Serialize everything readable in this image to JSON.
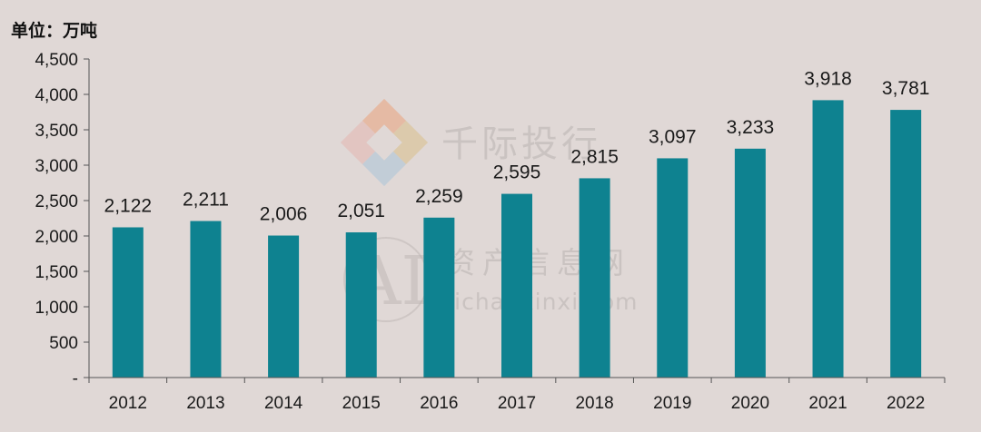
{
  "chart_data": {
    "type": "bar",
    "unit_label": "单位：万吨",
    "categories": [
      "2012",
      "2013",
      "2014",
      "2015",
      "2016",
      "2017",
      "2018",
      "2019",
      "2020",
      "2021",
      "2022"
    ],
    "values": [
      2122,
      2211,
      2006,
      2051,
      2259,
      2595,
      2815,
      3097,
      3233,
      3918,
      3781
    ],
    "value_labels": [
      "2,122",
      "2,211",
      "2,006",
      "2,051",
      "2,259",
      "2,595",
      "2,815",
      "3,097",
      "3,233",
      "3,918",
      "3,781"
    ],
    "y_ticks": [
      0,
      500,
      1000,
      1500,
      2000,
      2500,
      3000,
      3500,
      4000,
      4500
    ],
    "y_tick_labels": [
      "-",
      "500",
      "1,000",
      "1,500",
      "2,000",
      "2,500",
      "3,000",
      "3,500",
      "4,000",
      "4,500"
    ],
    "ylim": [
      0,
      4500
    ],
    "grid": false,
    "bar_color": "#0e8290"
  },
  "watermark": {
    "brand_cn": "千际投行",
    "site_cn": "资产信息网",
    "site_url": "zichanxinxi.com",
    "ai_text": "AI"
  }
}
